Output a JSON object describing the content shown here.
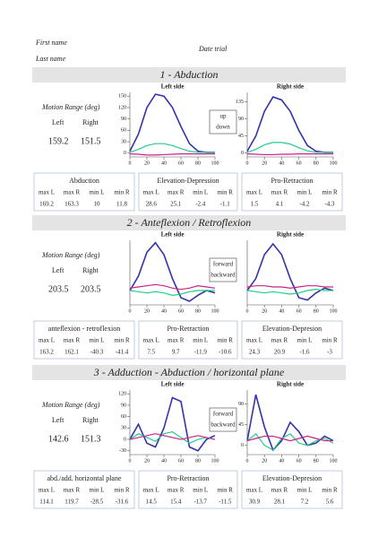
{
  "header": {
    "first_name": "First name",
    "last_name": "Last name",
    "date_trial": "Date trial"
  },
  "sections": [
    {
      "title": "1 - Abduction",
      "motion_range": {
        "label": "Motion Range (deg)",
        "left_label": "Left",
        "right_label": "Right",
        "left": 159.2,
        "right": 151.5
      },
      "legend": [
        "up",
        "down"
      ],
      "charts": [
        {
          "type": "line",
          "title": "Left side",
          "x": [
            0,
            10,
            20,
            30,
            40,
            50,
            60,
            70,
            80,
            90,
            100
          ],
          "xlim": [
            0,
            100
          ],
          "xticks": [
            0,
            20,
            40,
            60,
            80,
            100
          ],
          "ylim": [
            -10,
            160
          ],
          "yticks": [
            0,
            30,
            60,
            90,
            120,
            150
          ],
          "series": [
            {
              "color": "#3333aa",
              "values": [
                5,
                50,
                120,
                155,
                150,
                120,
                70,
                25,
                5,
                2,
                2
              ]
            },
            {
              "color": "#22cc88",
              "values": [
                2,
                10,
                20,
                25,
                25,
                20,
                12,
                5,
                2,
                2,
                2
              ]
            },
            {
              "color": "#cc2288",
              "values": [
                -2,
                -3,
                -5,
                -5,
                -4,
                -3,
                -2,
                -2,
                -2,
                -2,
                -2
              ]
            }
          ]
        },
        {
          "type": "line",
          "title": "Right side",
          "x": [
            0,
            10,
            20,
            30,
            40,
            50,
            60,
            70,
            80,
            90,
            100
          ],
          "xlim": [
            0,
            100
          ],
          "xticks": [
            0,
            20,
            40,
            60,
            80,
            100
          ],
          "ylim": [
            -10,
            160
          ],
          "yticks": [
            0,
            45,
            90,
            135
          ],
          "series": [
            {
              "color": "#3333aa",
              "values": [
                5,
                45,
                110,
                148,
                140,
                110,
                60,
                20,
                5,
                2,
                2
              ]
            },
            {
              "color": "#22cc88",
              "values": [
                2,
                10,
                22,
                28,
                28,
                24,
                14,
                6,
                2,
                2,
                2
              ]
            },
            {
              "color": "#cc2288",
              "values": [
                -2,
                -3,
                -4,
                -4,
                -3,
                -3,
                -2,
                -2,
                -2,
                -2,
                -2
              ]
            }
          ]
        }
      ],
      "tables": [
        {
          "title": "Abduction",
          "color": "#3333aa",
          "headers": [
            "max L",
            "max R",
            "min L",
            "min R"
          ],
          "values": [
            169.2,
            163.3,
            10,
            11.8
          ]
        },
        {
          "title": "Elevation-Depression",
          "color": "#119944",
          "headers": [
            "max L",
            "max R",
            "min L",
            "min R"
          ],
          "values": [
            28.6,
            25.1,
            -2.4,
            -1.1
          ]
        },
        {
          "title": "Pro-Retraction",
          "color": "#cc2288",
          "headers": [
            "max L",
            "max R",
            "min L",
            "min R"
          ],
          "values": [
            1.5,
            4.1,
            -4.2,
            -4.3
          ]
        }
      ]
    },
    {
      "title": "2 - Anteflexion / Retroflexion",
      "motion_range": {
        "label": "Motion Range (deg)",
        "left_label": "Left",
        "right_label": "Right",
        "left": 203.5,
        "right": 203.5
      },
      "legend": [
        "forward",
        "backward"
      ],
      "charts": [
        {
          "type": "line",
          "title": "Left side",
          "x": [
            0,
            10,
            20,
            30,
            40,
            50,
            60,
            70,
            80,
            90,
            100
          ],
          "xlim": [
            0,
            100
          ],
          "xticks": [
            0,
            20,
            40,
            60,
            80,
            100
          ],
          "ylim": [
            -60,
            210
          ],
          "yticks": [],
          "series": [
            {
              "color": "#3333aa",
              "values": [
                0,
                60,
                160,
                200,
                150,
                50,
                -30,
                -45,
                -20,
                0,
                -10
              ]
            },
            {
              "color": "#22cc88",
              "values": [
                0,
                -5,
                -10,
                -5,
                -10,
                -20,
                -15,
                -5,
                0,
                0,
                0
              ]
            },
            {
              "color": "#cc2288",
              "values": [
                10,
                15,
                20,
                25,
                20,
                10,
                5,
                10,
                20,
                15,
                10
              ]
            }
          ]
        },
        {
          "type": "line",
          "title": "Right side",
          "x": [
            0,
            10,
            20,
            30,
            40,
            50,
            60,
            70,
            80,
            90,
            100
          ],
          "xlim": [
            0,
            100
          ],
          "xticks": [
            0,
            20,
            40,
            60,
            80,
            100
          ],
          "ylim": [
            -60,
            210
          ],
          "yticks": [],
          "series": [
            {
              "color": "#3333aa",
              "values": [
                0,
                50,
                150,
                195,
                150,
                50,
                -30,
                -40,
                -10,
                10,
                0
              ]
            },
            {
              "color": "#22cc88",
              "values": [
                0,
                -5,
                -10,
                -5,
                -10,
                -15,
                -10,
                0,
                5,
                0,
                0
              ]
            },
            {
              "color": "#cc2288",
              "values": [
                15,
                20,
                20,
                15,
                15,
                10,
                15,
                20,
                20,
                15,
                15
              ]
            }
          ]
        }
      ],
      "tables": [
        {
          "title": "anteflexion - retroflexion",
          "color": "#3333aa",
          "headers": [
            "max L",
            "max R",
            "min L",
            "min R"
          ],
          "values": [
            163.2,
            162.1,
            -40.3,
            -41.4
          ]
        },
        {
          "title": "Pro-Retraction",
          "color": "#119944",
          "headers": [
            "max L",
            "max R",
            "min L",
            "min R"
          ],
          "values": [
            7.5,
            9.7,
            -11.9,
            -10.6
          ]
        },
        {
          "title": "Elevation-Depresion",
          "color": "#cc2288",
          "headers": [
            "max L",
            "max R",
            "min L",
            "min R"
          ],
          "values": [
            24.3,
            20.9,
            -1.6,
            -3
          ]
        }
      ]
    },
    {
      "title": "3 - Adduction - Abduction / horizontal plane",
      "motion_range": {
        "label": "Motion Range (deg)",
        "left_label": "Left",
        "right_label": "Right",
        "left": 142.6,
        "right": 151.3
      },
      "legend": [
        "forward",
        "backward"
      ],
      "charts": [
        {
          "type": "line",
          "title": "Left side",
          "x": [
            0,
            10,
            20,
            30,
            40,
            50,
            60,
            70,
            80,
            90,
            100
          ],
          "xlim": [
            0,
            100
          ],
          "xticks": [
            0,
            20,
            40,
            60,
            80,
            100
          ],
          "ylim": [
            -40,
            130
          ],
          "yticks": [
            -30,
            0,
            30,
            60,
            90,
            120
          ],
          "series": [
            {
              "color": "#3333aa",
              "values": [
                0,
                40,
                -10,
                -20,
                30,
                110,
                100,
                -20,
                -30,
                0,
                10
              ]
            },
            {
              "color": "#22cc88",
              "values": [
                0,
                15,
                5,
                -5,
                15,
                20,
                5,
                -10,
                0,
                5,
                0
              ]
            },
            {
              "color": "#cc2288",
              "values": [
                0,
                5,
                10,
                15,
                10,
                5,
                0,
                5,
                10,
                5,
                0
              ]
            }
          ]
        },
        {
          "type": "line",
          "title": "Right side",
          "x": [
            0,
            10,
            20,
            30,
            40,
            50,
            60,
            70,
            80,
            90,
            100
          ],
          "xlim": [
            0,
            100
          ],
          "xticks": [
            0,
            20,
            40,
            60,
            80,
            100
          ],
          "ylim": [
            -20,
            120
          ],
          "yticks": [
            0,
            45,
            90
          ],
          "series": [
            {
              "color": "#3333aa",
              "values": [
                10,
                110,
                40,
                -10,
                10,
                50,
                30,
                0,
                5,
                20,
                10
              ]
            },
            {
              "color": "#22cc88",
              "values": [
                10,
                25,
                0,
                -10,
                15,
                25,
                5,
                0,
                10,
                15,
                5
              ]
            },
            {
              "color": "#cc2288",
              "values": [
                10,
                15,
                20,
                20,
                15,
                10,
                15,
                20,
                15,
                10,
                10
              ]
            }
          ]
        }
      ],
      "tables": [
        {
          "title": "abd./add. horizontal plane",
          "color": "#3333aa",
          "headers": [
            "max L",
            "max R",
            "min L",
            "min R"
          ],
          "values": [
            114.1,
            119.7,
            -28.5,
            -31.6
          ]
        },
        {
          "title": "Pro-Retraction",
          "color": "#119944",
          "headers": [
            "max L",
            "max R",
            "min L",
            "min R"
          ],
          "values": [
            14.5,
            15.4,
            -13.7,
            -11.5
          ]
        },
        {
          "title": "Elevation-Depresion",
          "color": "#cc2288",
          "headers": [
            "max L",
            "max R",
            "min L",
            "min R"
          ],
          "values": [
            30.9,
            28.1,
            7.2,
            5.6
          ]
        }
      ]
    }
  ]
}
